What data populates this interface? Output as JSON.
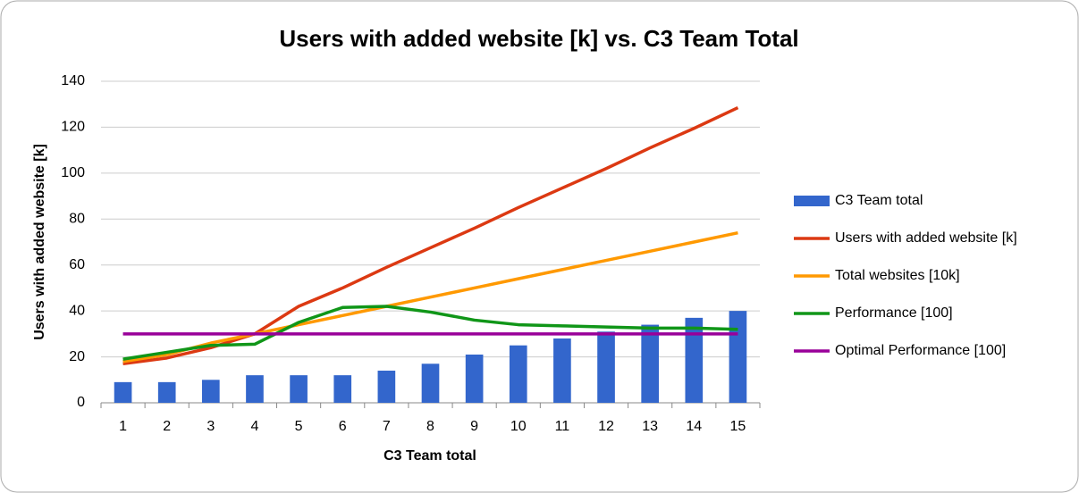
{
  "chart_data": {
    "type": "combo",
    "title": "Users with added website [k] vs. C3 Team Total",
    "x_label": "C3 Team total",
    "y_label": "Users with added website [k]",
    "categories": [
      "1",
      "2",
      "3",
      "4",
      "5",
      "6",
      "7",
      "8",
      "9",
      "10",
      "11",
      "12",
      "13",
      "14",
      "15"
    ],
    "ylim": [
      0,
      140
    ],
    "yticks": [
      0,
      20,
      40,
      60,
      80,
      100,
      120,
      140
    ],
    "grid": true,
    "legend": "right",
    "series": [
      {
        "name": "C3 Team total",
        "type": "bar",
        "color": "#3366cc",
        "values": [
          9,
          9,
          10,
          12,
          12,
          12,
          14,
          17,
          21,
          25,
          28,
          31,
          34,
          37,
          40
        ]
      },
      {
        "name": "Users with added website [k]",
        "type": "line",
        "color": "#dc3912",
        "values": [
          17,
          19.5,
          24,
          30,
          42,
          50,
          59,
          67.5,
          76,
          85,
          93.5,
          102,
          111,
          119.5,
          128.5
        ]
      },
      {
        "name": "Total websites [10k]",
        "type": "line",
        "color": "#ff9900",
        "values": [
          18,
          21,
          26,
          30,
          34,
          38,
          42,
          46,
          50,
          54,
          58,
          62,
          66,
          70,
          74
        ]
      },
      {
        "name": "Performance [100]",
        "type": "line",
        "color": "#109618",
        "values": [
          19,
          22,
          25,
          25.5,
          35,
          41.5,
          42,
          39.5,
          36,
          34,
          33.5,
          33,
          32.5,
          32.5,
          32
        ]
      },
      {
        "name": "Optimal Performance [100]",
        "type": "line",
        "color": "#990099",
        "values": [
          30,
          30,
          30,
          30,
          30,
          30,
          30,
          30,
          30,
          30,
          30,
          30,
          30,
          30,
          30
        ]
      }
    ]
  }
}
